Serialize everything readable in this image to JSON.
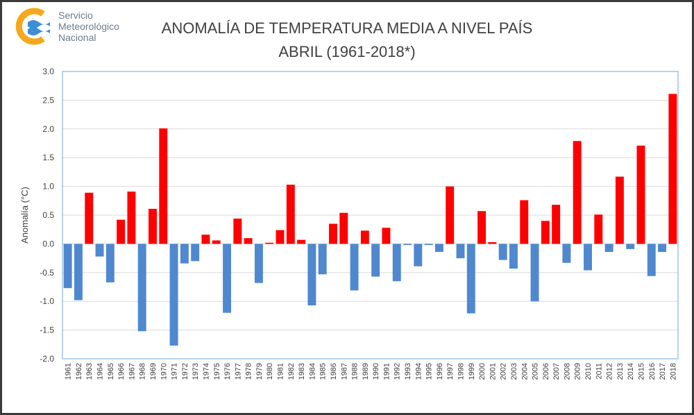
{
  "logo": {
    "lines": [
      "Servicio",
      "Meteorológico",
      "Nacional"
    ],
    "colors": {
      "ring": "#f5a81c",
      "waves": "#3a8fd6"
    }
  },
  "chart_data": {
    "type": "bar",
    "title": "ANOMALÍA DE TEMPERATURA MEDIA A NIVEL PAÍS",
    "subtitle": "ABRIL (1961-2018*)",
    "xlabel": "",
    "ylabel": "Anomalía (°C)",
    "ylim": [
      -2.0,
      3.0
    ],
    "yticks": [
      "3.0",
      "2.5",
      "2.0",
      "1.5",
      "1.0",
      "0.5",
      "0.0",
      "-0.5",
      "-1.0",
      "-1.5",
      "-2.0"
    ],
    "grid": true,
    "colors": {
      "positive": "#ff0000",
      "negative": "#4f88cf"
    },
    "categories": [
      "1961",
      "1962",
      "1963",
      "1964",
      "1965",
      "1966",
      "1967",
      "1968",
      "1969",
      "1970",
      "1971",
      "1972",
      "1973",
      "1974",
      "1975",
      "1976",
      "1977",
      "1978",
      "1979",
      "1980",
      "1981",
      "1982",
      "1983",
      "1984",
      "1985",
      "1986",
      "1987",
      "1988",
      "1989",
      "1990",
      "1991",
      "1992",
      "1993",
      "1994",
      "1995",
      "1996",
      "1997",
      "1998",
      "1999",
      "2000",
      "2001",
      "2002",
      "2003",
      "2004",
      "2005",
      "2006",
      "2007",
      "2008",
      "2009",
      "2010",
      "2011",
      "2012",
      "2013",
      "2014",
      "2015",
      "2016",
      "2017",
      "2018"
    ],
    "values": [
      -0.77,
      -0.98,
      0.89,
      -0.22,
      -0.67,
      0.42,
      0.91,
      -1.52,
      0.61,
      2.01,
      -1.77,
      -0.34,
      -0.3,
      0.16,
      0.06,
      -1.2,
      0.44,
      0.1,
      -0.68,
      0.02,
      0.24,
      1.03,
      0.07,
      -1.07,
      -0.53,
      0.35,
      0.54,
      -0.81,
      0.23,
      -0.57,
      0.28,
      -0.65,
      -0.02,
      -0.39,
      -0.02,
      -0.14,
      1.0,
      -0.25,
      -1.21,
      0.57,
      0.03,
      -0.28,
      -0.43,
      0.76,
      -1.0,
      0.4,
      0.68,
      -0.33,
      1.79,
      -0.46,
      0.51,
      -0.14,
      1.17,
      -0.09,
      1.71,
      -0.56,
      -0.14,
      2.61
    ]
  }
}
